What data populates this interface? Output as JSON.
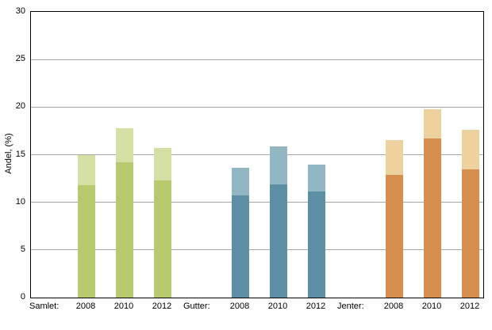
{
  "chart_data": {
    "type": "bar",
    "stacked": true,
    "title": "",
    "ylabel": "Andel, (%)",
    "xlabel": "",
    "ylim": [
      0,
      30
    ],
    "yticks": [
      0,
      5,
      10,
      15,
      20,
      25,
      30
    ],
    "grid": true,
    "legend": "none",
    "groups": [
      {
        "label": "Samlet:",
        "colors": {
          "bottom": "#b6ca6d",
          "top": "#d3dfa3"
        },
        "bars": [
          {
            "category": "2008",
            "bottom": 11.8,
            "top": 3.2,
            "total": 15.0
          },
          {
            "category": "2010",
            "bottom": 14.2,
            "top": 3.6,
            "total": 17.8
          },
          {
            "category": "2012",
            "bottom": 12.3,
            "top": 3.4,
            "total": 15.7
          }
        ]
      },
      {
        "label": "Gutter:",
        "colors": {
          "bottom": "#5c8ea4",
          "top": "#92b7c3"
        },
        "bars": [
          {
            "category": "2008",
            "bottom": 10.7,
            "top": 2.9,
            "total": 13.6
          },
          {
            "category": "2010",
            "bottom": 11.9,
            "top": 4.0,
            "total": 15.9
          },
          {
            "category": "2012",
            "bottom": 11.1,
            "top": 2.9,
            "total": 14.0
          }
        ]
      },
      {
        "label": "Jenter:",
        "colors": {
          "bottom": "#d68e4f",
          "top": "#edd2a0"
        },
        "bars": [
          {
            "category": "2008",
            "bottom": 12.9,
            "top": 3.6,
            "total": 16.5
          },
          {
            "category": "2010",
            "bottom": 16.7,
            "top": 3.1,
            "total": 19.8
          },
          {
            "category": "2012",
            "bottom": 13.5,
            "top": 4.1,
            "total": 17.6
          }
        ]
      }
    ]
  }
}
